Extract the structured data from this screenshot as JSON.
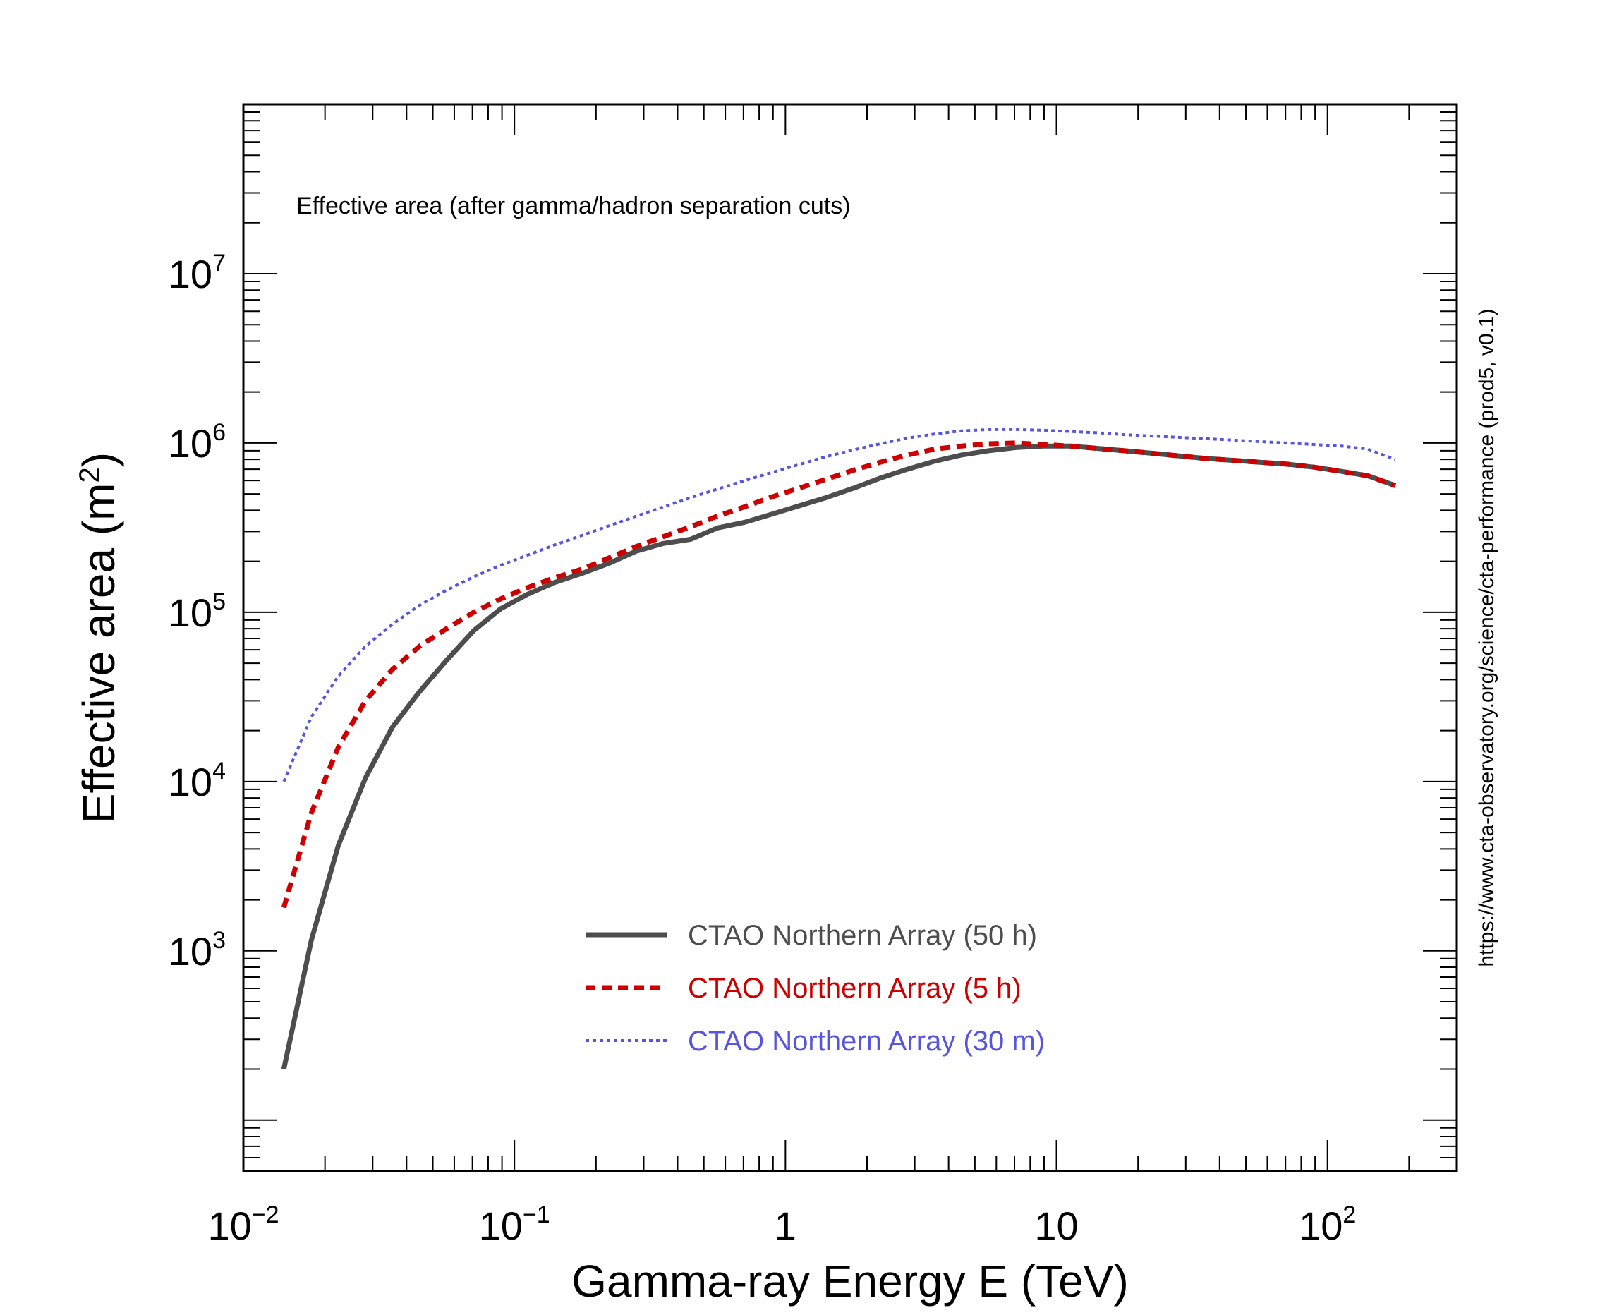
{
  "chart_data": {
    "type": "line",
    "title": "Effective area (after gamma/hadron separation cuts)",
    "xlabel": "Gamma-ray Energy E (TeV)",
    "ylabel_main": "Effective area (m",
    "ylabel_sup": "2",
    "ylabel_tail": ")",
    "side_note": "https://www.cta-observatory.org/science/cta-performance (prod5, v0.1)",
    "x_scale": "log",
    "y_scale": "log",
    "xlim": [
      0.01,
      300
    ],
    "ylim": [
      50,
      100000000
    ],
    "x_ticks": [
      {
        "base": "10",
        "exp": "−2",
        "value": 0.01
      },
      {
        "base": "10",
        "exp": "−1",
        "value": 0.1
      },
      {
        "base": "1",
        "exp": "",
        "value": 1
      },
      {
        "base": "10",
        "exp": "",
        "value": 10
      },
      {
        "base": "10",
        "exp": "2",
        "value": 100
      }
    ],
    "y_ticks": [
      {
        "base": "10",
        "exp": "3",
        "value": 1000
      },
      {
        "base": "10",
        "exp": "4",
        "value": 10000
      },
      {
        "base": "10",
        "exp": "5",
        "value": 100000
      },
      {
        "base": "10",
        "exp": "6",
        "value": 1000000
      },
      {
        "base": "10",
        "exp": "7",
        "value": 10000000
      }
    ],
    "legend_position": "bottom-center",
    "grid": false,
    "series": [
      {
        "name": "CTAO Northern Array (50 h)",
        "color": "#4d4d4d",
        "dash": "solid",
        "points": [
          [
            0.0141,
            200
          ],
          [
            0.0178,
            1150
          ],
          [
            0.0224,
            4200
          ],
          [
            0.0282,
            10500
          ],
          [
            0.0355,
            21000
          ],
          [
            0.0447,
            34000
          ],
          [
            0.0562,
            52000
          ],
          [
            0.0708,
            78000
          ],
          [
            0.0891,
            105000
          ],
          [
            0.112,
            128000
          ],
          [
            0.141,
            150000
          ],
          [
            0.178,
            170000
          ],
          [
            0.224,
            195000
          ],
          [
            0.282,
            230000
          ],
          [
            0.355,
            255000
          ],
          [
            0.447,
            270000
          ],
          [
            0.562,
            315000
          ],
          [
            0.708,
            340000
          ],
          [
            0.891,
            380000
          ],
          [
            1.12,
            425000
          ],
          [
            1.41,
            475000
          ],
          [
            1.78,
            540000
          ],
          [
            2.24,
            620000
          ],
          [
            2.82,
            700000
          ],
          [
            3.55,
            780000
          ],
          [
            4.47,
            850000
          ],
          [
            5.62,
            900000
          ],
          [
            7.08,
            940000
          ],
          [
            8.91,
            960000
          ],
          [
            11.2,
            960000
          ],
          [
            14.1,
            930000
          ],
          [
            17.8,
            900000
          ],
          [
            22.4,
            870000
          ],
          [
            28.2,
            840000
          ],
          [
            35.5,
            810000
          ],
          [
            44.7,
            790000
          ],
          [
            56.2,
            770000
          ],
          [
            70.8,
            750000
          ],
          [
            89.1,
            720000
          ],
          [
            112,
            680000
          ],
          [
            141,
            640000
          ],
          [
            178,
            560000
          ]
        ]
      },
      {
        "name": "CTAO Northern Array (5 h)",
        "color": "#cc0000",
        "dash": "dashed",
        "points": [
          [
            0.0141,
            1800
          ],
          [
            0.0178,
            6500
          ],
          [
            0.0224,
            16000
          ],
          [
            0.0282,
            30000
          ],
          [
            0.0355,
            46000
          ],
          [
            0.0447,
            63000
          ],
          [
            0.0562,
            80000
          ],
          [
            0.0708,
            100000
          ],
          [
            0.0891,
            120000
          ],
          [
            0.112,
            140000
          ],
          [
            0.141,
            160000
          ],
          [
            0.178,
            180000
          ],
          [
            0.224,
            210000
          ],
          [
            0.282,
            245000
          ],
          [
            0.355,
            280000
          ],
          [
            0.447,
            320000
          ],
          [
            0.562,
            370000
          ],
          [
            0.708,
            420000
          ],
          [
            0.891,
            480000
          ],
          [
            1.12,
            540000
          ],
          [
            1.41,
            610000
          ],
          [
            1.78,
            690000
          ],
          [
            2.24,
            770000
          ],
          [
            2.82,
            850000
          ],
          [
            3.55,
            920000
          ],
          [
            4.47,
            960000
          ],
          [
            5.62,
            990000
          ],
          [
            7.08,
            1000000
          ],
          [
            8.91,
            980000
          ],
          [
            11.2,
            960000
          ],
          [
            14.1,
            930000
          ],
          [
            17.8,
            900000
          ],
          [
            22.4,
            870000
          ],
          [
            28.2,
            840000
          ],
          [
            35.5,
            810000
          ],
          [
            44.7,
            790000
          ],
          [
            56.2,
            770000
          ],
          [
            70.8,
            750000
          ],
          [
            89.1,
            720000
          ],
          [
            112,
            680000
          ],
          [
            141,
            640000
          ],
          [
            178,
            560000
          ]
        ]
      },
      {
        "name": "CTAO Northern Array (30 m)",
        "color": "#5555dd",
        "dash": "dotted",
        "points": [
          [
            0.0141,
            10000
          ],
          [
            0.0178,
            24000
          ],
          [
            0.0224,
            42000
          ],
          [
            0.0282,
            63000
          ],
          [
            0.0355,
            85000
          ],
          [
            0.0447,
            110000
          ],
          [
            0.0562,
            135000
          ],
          [
            0.0708,
            162000
          ],
          [
            0.0891,
            190000
          ],
          [
            0.112,
            218000
          ],
          [
            0.141,
            250000
          ],
          [
            0.178,
            285000
          ],
          [
            0.224,
            325000
          ],
          [
            0.282,
            370000
          ],
          [
            0.355,
            420000
          ],
          [
            0.447,
            475000
          ],
          [
            0.562,
            535000
          ],
          [
            0.708,
            600000
          ],
          [
            0.891,
            670000
          ],
          [
            1.12,
            745000
          ],
          [
            1.41,
            830000
          ],
          [
            1.78,
            910000
          ],
          [
            2.24,
            990000
          ],
          [
            2.82,
            1070000
          ],
          [
            3.55,
            1130000
          ],
          [
            4.47,
            1180000
          ],
          [
            5.62,
            1200000
          ],
          [
            7.08,
            1200000
          ],
          [
            8.91,
            1190000
          ],
          [
            11.2,
            1170000
          ],
          [
            14.1,
            1150000
          ],
          [
            17.8,
            1120000
          ],
          [
            22.4,
            1100000
          ],
          [
            28.2,
            1080000
          ],
          [
            35.5,
            1060000
          ],
          [
            44.7,
            1040000
          ],
          [
            56.2,
            1020000
          ],
          [
            70.8,
            1000000
          ],
          [
            89.1,
            980000
          ],
          [
            112,
            960000
          ],
          [
            141,
            920000
          ],
          [
            178,
            800000
          ]
        ]
      }
    ]
  }
}
